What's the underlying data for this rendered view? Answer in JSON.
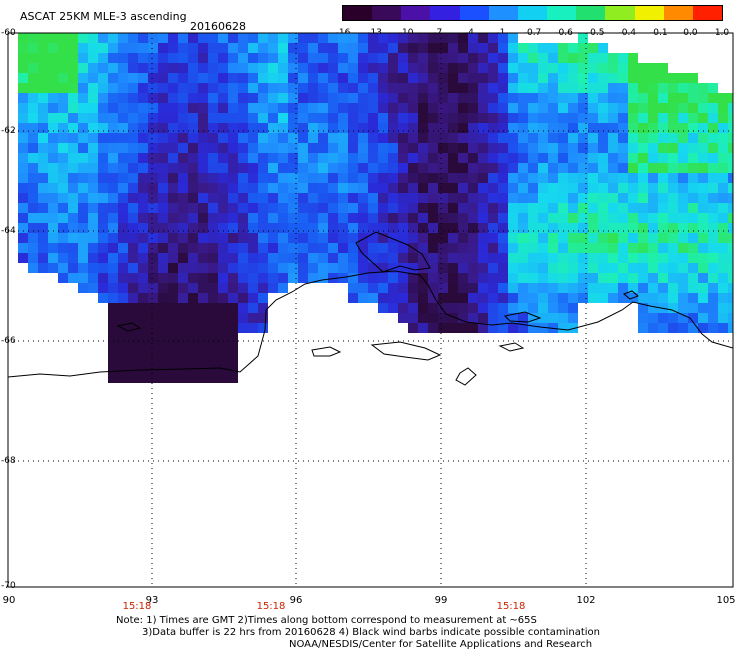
{
  "title": "ASCAT 25KM MLE-3 ascending",
  "date": "20160628",
  "colorbar": {
    "labels": [
      "-16",
      "-13",
      "-10",
      "-7",
      "-4",
      "-1",
      "-0.7",
      "-0.6",
      "-0.5",
      "-0.4",
      "-0.1",
      "0.0",
      "1.0"
    ],
    "colors": [
      "#2a002a",
      "#3a0a5a",
      "#4a10a8",
      "#3320e0",
      "#1a50ff",
      "#1f90ff",
      "#12d0f2",
      "#19f0c0",
      "#22e070",
      "#90ee20",
      "#f0f000",
      "#ff8a00",
      "#ff2000"
    ]
  },
  "axes": {
    "lat_labels": [
      "-60",
      "-62",
      "-64",
      "-66",
      "-68",
      "-70"
    ],
    "lon_labels": [
      "90",
      "93",
      "96",
      "99",
      "102",
      "105"
    ],
    "time_labels": [
      "15:18",
      "15:18",
      "15:18"
    ]
  },
  "notes": {
    "line1": "Note: 1) Times are GMT 2)Times along bottom correspond to measurement at ~65S",
    "line2": "3)Data buffer is 22 hrs from 20160628 4) Black wind barbs indicate possible contamination",
    "line3": "NOAA/NESDIS/Center for Satellite Applications and Research"
  }
}
